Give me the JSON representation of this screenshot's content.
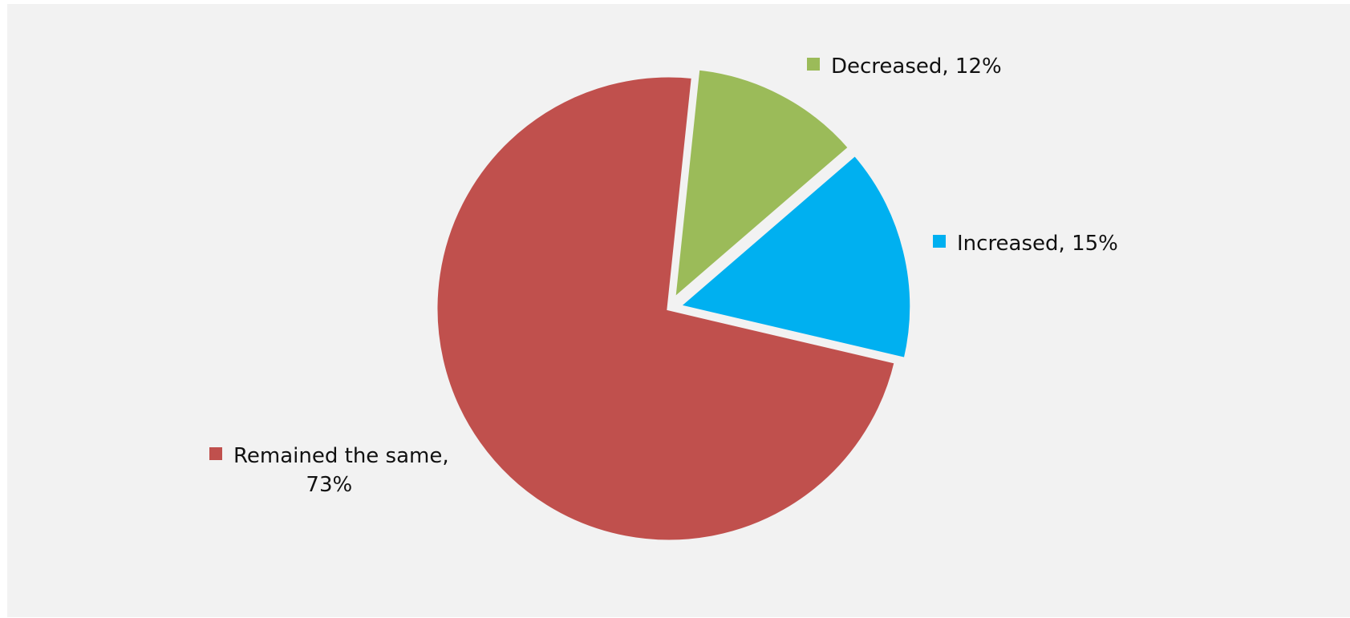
{
  "chart_data": {
    "type": "pie",
    "title": "",
    "slices": [
      {
        "label": "Decreased",
        "value": 12,
        "label_text": "Decreased, 12%",
        "color": "#9bbb59"
      },
      {
        "label": "Increased",
        "value": 15,
        "label_text": "Increased, 15%",
        "color": "#00b0f0"
      },
      {
        "label": "Remained the same",
        "value": 73,
        "label_text_line1": "Remained the same,",
        "label_text_line2": "73%",
        "color": "#c0504d"
      }
    ],
    "background": "#f2f2f2"
  }
}
